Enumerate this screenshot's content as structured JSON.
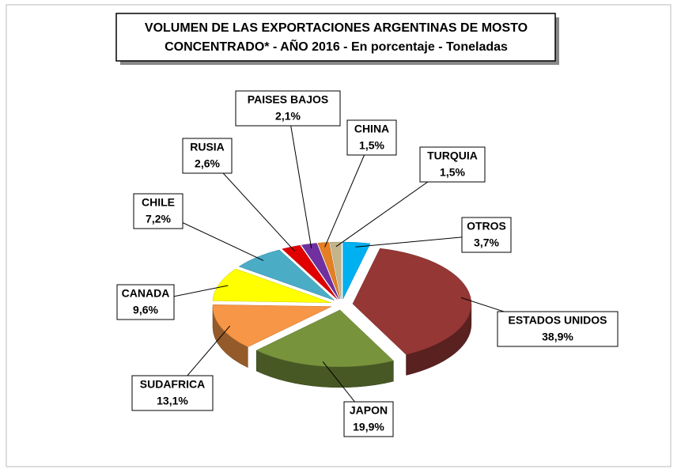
{
  "chart_data": {
    "type": "pie3d",
    "title": [
      "VOLUMEN DE LAS EXPORTACIONES ARGENTINAS DE MOSTO",
      "CONCENTRADO* - AÑO 2016 - En porcentaje -  Toneladas"
    ],
    "categories": [
      "OTROS",
      "ESTADOS UNIDOS",
      "JAPON",
      "SUDAFRICA",
      "CANADA",
      "CHILE",
      "RUSIA",
      "PAISES BAJOS",
      "CHINA",
      "TURQUIA"
    ],
    "values": [
      3.7,
      38.9,
      19.9,
      13.1,
      9.6,
      7.2,
      2.6,
      2.1,
      1.5,
      1.5
    ],
    "value_labels": [
      "3,7%",
      "38,9%",
      "19,9%",
      "13,1%",
      "9,6%",
      "7,2%",
      "2,6%",
      "2,1%",
      "1,5%",
      "1,5%"
    ],
    "colors": [
      "#00b0f0",
      "#953735",
      "#77933c",
      "#f79646",
      "#ffff00",
      "#4bacc6",
      "#e00000",
      "#7030a0",
      "#e67e22",
      "#c4b48a"
    ]
  }
}
